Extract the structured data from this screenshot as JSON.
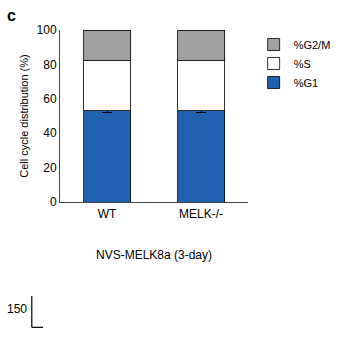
{
  "chart_data": {
    "type": "bar",
    "stacked": true,
    "categories": [
      "WT",
      "MELK-/-"
    ],
    "series": [
      {
        "name": "%G1",
        "color": "#2060b0",
        "values": [
          53,
          53
        ],
        "errors": [
          0.8,
          0.8
        ]
      },
      {
        "name": "%S",
        "color": "#ffffff",
        "values": [
          29,
          29
        ]
      },
      {
        "name": "%G2/M",
        "color": "#a0a0a0",
        "values": [
          18,
          18
        ]
      }
    ],
    "ylabel": "Cell cycle distribution (%)",
    "ylim": [
      0,
      100
    ],
    "yticks": [
      0,
      20,
      40,
      60,
      80,
      100
    ],
    "grid": false,
    "legend": "upper right",
    "annotations": [
      "c",
      "NVS-MELK8a (3-day)",
      "150"
    ]
  }
}
